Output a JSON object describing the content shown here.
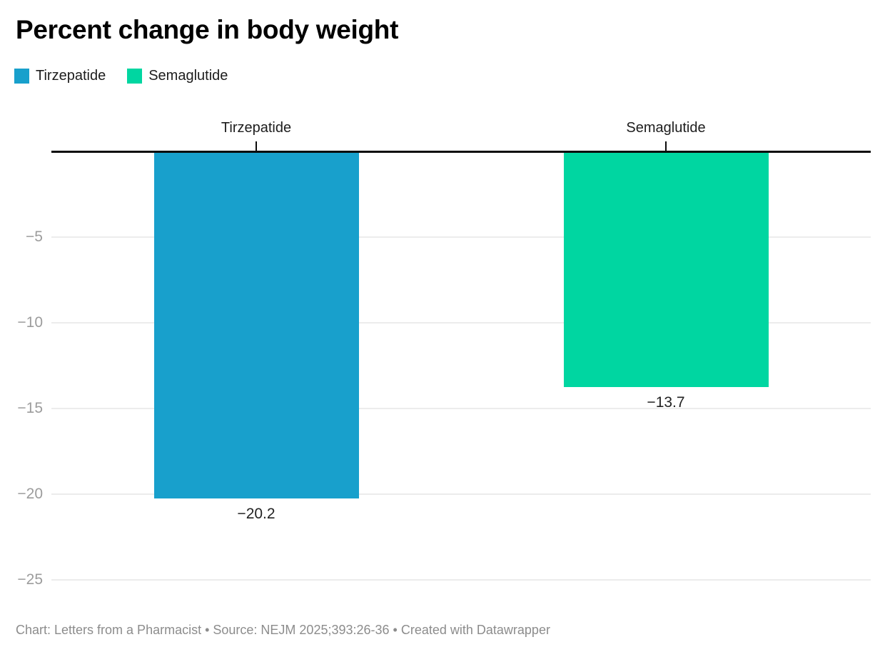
{
  "title": "Percent change in body weight",
  "legend": {
    "items": [
      {
        "label": "Tirzepatide",
        "color": "#18a0cc"
      },
      {
        "label": "Semaglutide",
        "color": "#00d6a1"
      }
    ]
  },
  "footer": {
    "text": "Chart: Letters from a Pharmacist • Source: NEJM 2025;393:26-36 • Created with Datawrapper"
  },
  "colors": {
    "tirzepatide_blue": "#18a0cc",
    "semaglutide_green": "#00d6a1",
    "axis_label_gray": "#9c9c9c",
    "gridline_gray": "#ececec",
    "baseline_black": "#0b0b0b",
    "footer_gray": "#8c8c8c"
  },
  "chart_data": {
    "type": "bar",
    "title": "Percent change in body weight",
    "categories": [
      "Tirzepatide",
      "Semaglutide"
    ],
    "values": [
      -20.2,
      -13.7
    ],
    "value_labels": [
      "−20.2",
      "−13.7"
    ],
    "colors": [
      "#18a0cc",
      "#00d6a1"
    ],
    "xlabel": "",
    "ylabel": "",
    "ylim": [
      -26.5,
      0
    ],
    "yticks": [
      -5,
      -10,
      -15,
      -20,
      -25
    ],
    "ytick_labels": [
      "−5",
      "−10",
      "−15",
      "−20",
      "−25"
    ],
    "grid": true,
    "legend_position": "top-left",
    "bar_orientation": "vertical",
    "baseline": 0,
    "category_labels_position": "above-baseline",
    "value_labels_position": "below-bar-end"
  }
}
